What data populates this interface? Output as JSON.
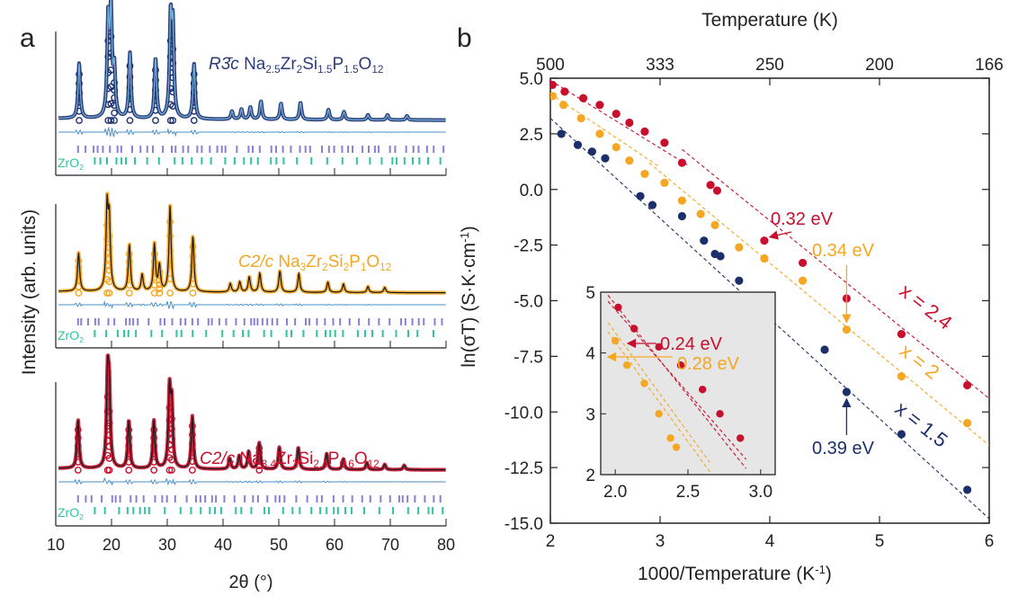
{
  "panels": {
    "a": "a",
    "b": "b"
  },
  "colors": {
    "phase15": "#1c2f6b",
    "phase15_fit": "#6fb2e0",
    "phase20": "#f5a623",
    "phase24": "#c8102e",
    "diff": "#4a8fc9",
    "ticks_main": "#8a7fd4",
    "ticks_zro2": "#2fc4a0",
    "inset_bg": "#e6e6e6"
  },
  "chart_data": [
    {
      "type": "line",
      "panel": "a",
      "xlabel": "2θ (°)",
      "ylabel": "Intensity (arb. units)",
      "xlim": [
        10,
        80
      ],
      "xticks": [
        10,
        20,
        30,
        40,
        50,
        60,
        70,
        80
      ],
      "phase_label": "ZrO",
      "phase_label_sub": "2",
      "series": [
        {
          "key": "p15",
          "spacegroup": "R3̄c",
          "formula": [
            [
              "Na",
              ""
            ],
            [
              "2.5",
              "sub"
            ],
            [
              "Zr",
              ""
            ],
            [
              "2",
              "sub"
            ],
            [
              "Si",
              ""
            ],
            [
              "1.5",
              "sub"
            ],
            [
              "P",
              ""
            ],
            [
              "1.5",
              "sub"
            ],
            [
              "O",
              ""
            ],
            [
              "12",
              "sub"
            ]
          ],
          "peaks": [
            [
              14.2,
              0.55
            ],
            [
              19.4,
              0.95
            ],
            [
              19.9,
              1.0
            ],
            [
              20.5,
              0.45
            ],
            [
              23.3,
              0.65
            ],
            [
              27.9,
              0.6
            ],
            [
              30.6,
              0.95
            ],
            [
              31.0,
              0.85
            ],
            [
              34.8,
              0.55
            ],
            [
              41.6,
              0.08
            ],
            [
              43.3,
              0.1
            ],
            [
              44.9,
              0.12
            ],
            [
              46.8,
              0.18
            ],
            [
              50.4,
              0.16
            ],
            [
              53.9,
              0.17
            ],
            [
              58.9,
              0.1
            ],
            [
              61.7,
              0.08
            ],
            [
              66.0,
              0.05
            ],
            [
              69.5,
              0.05
            ],
            [
              73.0,
              0.04
            ]
          ]
        },
        {
          "key": "p20",
          "spacegroup": "C2/c",
          "formula": [
            [
              "Na",
              ""
            ],
            [
              "3",
              "sub"
            ],
            [
              "Zr",
              ""
            ],
            [
              "2",
              "sub"
            ],
            [
              "Si",
              ""
            ],
            [
              "2",
              "sub"
            ],
            [
              "P",
              ""
            ],
            [
              "1",
              "sub"
            ],
            [
              "O",
              ""
            ],
            [
              "12",
              "sub"
            ]
          ],
          "peaks": [
            [
              14.1,
              0.45
            ],
            [
              19.2,
              0.95
            ],
            [
              19.6,
              0.8
            ],
            [
              23.2,
              0.55
            ],
            [
              25.5,
              0.2
            ],
            [
              27.7,
              0.55
            ],
            [
              28.6,
              0.3
            ],
            [
              30.5,
              1.0
            ],
            [
              34.6,
              0.65
            ],
            [
              41.3,
              0.1
            ],
            [
              43.0,
              0.12
            ],
            [
              44.7,
              0.18
            ],
            [
              46.6,
              0.22
            ],
            [
              50.2,
              0.25
            ],
            [
              53.6,
              0.22
            ],
            [
              58.8,
              0.12
            ],
            [
              61.6,
              0.1
            ],
            [
              66.0,
              0.07
            ],
            [
              69.0,
              0.06
            ]
          ]
        },
        {
          "key": "p24",
          "spacegroup": "C2/c",
          "formula": [
            [
              "Na",
              ""
            ],
            [
              "3.4",
              "sub"
            ],
            [
              "Zr",
              ""
            ],
            [
              "2",
              "sub"
            ],
            [
              "Si",
              ""
            ],
            [
              "2.4",
              "sub"
            ],
            [
              "P",
              ""
            ],
            [
              "0.6",
              "sub"
            ],
            [
              "O",
              ""
            ],
            [
              "12",
              "sub"
            ]
          ],
          "peaks": [
            [
              14.0,
              0.55
            ],
            [
              19.3,
              1.0
            ],
            [
              19.6,
              0.8
            ],
            [
              23.1,
              0.55
            ],
            [
              27.6,
              0.55
            ],
            [
              30.4,
              0.85
            ],
            [
              30.8,
              0.7
            ],
            [
              34.5,
              0.6
            ],
            [
              41.2,
              0.12
            ],
            [
              42.9,
              0.15
            ],
            [
              44.6,
              0.2
            ],
            [
              46.5,
              0.3
            ],
            [
              50.1,
              0.25
            ],
            [
              53.5,
              0.25
            ],
            [
              58.6,
              0.18
            ],
            [
              61.6,
              0.12
            ],
            [
              65.8,
              0.08
            ],
            [
              69.0,
              0.06
            ],
            [
              72.5,
              0.05
            ]
          ]
        }
      ]
    },
    {
      "type": "scatter",
      "panel": "b",
      "xlabel": "1000/Temperature (K",
      "xlabel_sup": "-1",
      "xlabel_end": ")",
      "ylabel": "ln(σT) (S·K·cm",
      "ylabel_sup": "-1",
      "ylabel_end": ")",
      "toplabel": "Temperature (K)",
      "xlim": [
        2,
        6
      ],
      "ylim": [
        -15,
        5
      ],
      "xticks": [
        "2",
        "3",
        "4",
        "5",
        "6"
      ],
      "yticks": [
        "5.0",
        "2.5",
        "0.0",
        "-2.5",
        "-5.0",
        "-7.5",
        "-10.0",
        "-12.5",
        "-15.0"
      ],
      "top_ticks": [
        [
          "500",
          2.0
        ],
        [
          "333",
          3.0
        ],
        [
          "250",
          4.0
        ],
        [
          "200",
          5.0
        ],
        [
          "166",
          6.0
        ]
      ],
      "series": [
        {
          "name": "x = 2.4",
          "color": "#c8102e",
          "activation": "0.32 eV",
          "points": [
            [
              2.02,
              4.7
            ],
            [
              2.13,
              4.4
            ],
            [
              2.3,
              4.1
            ],
            [
              2.45,
              3.8
            ],
            [
              2.6,
              3.4
            ],
            [
              2.72,
              3.0
            ],
            [
              2.86,
              2.6
            ],
            [
              3.04,
              2.1
            ],
            [
              3.2,
              1.2
            ],
            [
              3.46,
              0.2
            ],
            [
              3.52,
              -0.05
            ],
            [
              3.95,
              -2.3
            ],
            [
              4.3,
              -3.3
            ],
            [
              4.7,
              -4.9
            ],
            [
              5.2,
              -6.5
            ],
            [
              5.8,
              -8.8
            ]
          ],
          "fits": [
            [
              [
                2.0,
                4.9
              ],
              [
                3.25,
                1.1
              ]
            ],
            [
              [
                3.2,
                1.8
              ],
              [
                6.0,
                -9.4
              ]
            ]
          ]
        },
        {
          "name": "x = 2",
          "color": "#f5a623",
          "activation": "0.34 eV",
          "points": [
            [
              2.02,
              4.2
            ],
            [
              2.12,
              3.8
            ],
            [
              2.28,
              3.2
            ],
            [
              2.45,
              2.5
            ],
            [
              2.6,
              1.9
            ],
            [
              2.72,
              1.3
            ],
            [
              2.86,
              0.7
            ],
            [
              3.04,
              0.3
            ],
            [
              3.2,
              -0.5
            ],
            [
              3.37,
              -1.1
            ],
            [
              3.5,
              -1.6
            ],
            [
              3.72,
              -2.6
            ],
            [
              3.95,
              -3.1
            ],
            [
              4.3,
              -4.1
            ],
            [
              4.7,
              -6.3
            ],
            [
              5.2,
              -8.4
            ],
            [
              5.8,
              -10.5
            ]
          ],
          "fits": [
            [
              [
                2.0,
                4.3
              ],
              [
                3.0,
                1.0
              ]
            ],
            [
              [
                2.9,
                1.2
              ],
              [
                6.0,
                -11.5
              ]
            ]
          ]
        },
        {
          "name": "x = 1.5",
          "color": "#1c2f6b",
          "activation": "0.39 eV",
          "points": [
            [
              2.1,
              2.5
            ],
            [
              2.25,
              2.0
            ],
            [
              2.38,
              1.7
            ],
            [
              2.5,
              1.4
            ],
            [
              2.82,
              -0.3
            ],
            [
              2.93,
              -0.7
            ],
            [
              3.2,
              -1.2
            ],
            [
              3.4,
              -2.3
            ],
            [
              3.5,
              -2.9
            ],
            [
              3.55,
              -3.0
            ],
            [
              3.72,
              -4.1
            ],
            [
              3.8,
              -4.95
            ],
            [
              4.5,
              -7.2
            ],
            [
              4.7,
              -9.1
            ],
            [
              5.2,
              -11.0
            ],
            [
              5.8,
              -13.5
            ]
          ],
          "fits": [
            [
              [
                2.0,
                3.2
              ],
              [
                6.0,
                -14.8
              ]
            ]
          ]
        }
      ],
      "inset": {
        "xlim": [
          1.9,
          3.1
        ],
        "ylim": [
          2,
          5
        ],
        "xticks": [
          "2.0",
          "2.5",
          "3.0"
        ],
        "yticks": [
          "5",
          "4",
          "3",
          "2"
        ],
        "series": [
          {
            "color": "#c8102e",
            "activation": "0.24 eV",
            "points": [
              [
                2.02,
                4.75
              ],
              [
                2.13,
                4.4
              ],
              [
                2.3,
                4.1
              ],
              [
                2.45,
                3.8
              ],
              [
                2.6,
                3.4
              ],
              [
                2.72,
                3.0
              ],
              [
                2.86,
                2.6
              ]
            ],
            "fits": [
              [
                [
                  1.95,
                  4.95
                ],
                [
                  2.9,
                  2.1
                ]
              ],
              [
                [
                  1.95,
                  4.85
                ],
                [
                  2.9,
                  2.25
                ]
              ]
            ]
          },
          {
            "color": "#f5a623",
            "activation": "0.28 eV",
            "points": [
              [
                2.0,
                4.2
              ],
              [
                2.08,
                3.8
              ],
              [
                2.2,
                3.5
              ],
              [
                2.3,
                3.0
              ],
              [
                2.38,
                2.6
              ],
              [
                2.42,
                2.45
              ]
            ],
            "fits": [
              [
                [
                  1.95,
                  4.35
                ],
                [
                  2.65,
                  2.05
                ]
              ],
              [
                [
                  1.95,
                  4.5
                ],
                [
                  2.65,
                  2.2
                ]
              ]
            ]
          }
        ]
      }
    }
  ]
}
